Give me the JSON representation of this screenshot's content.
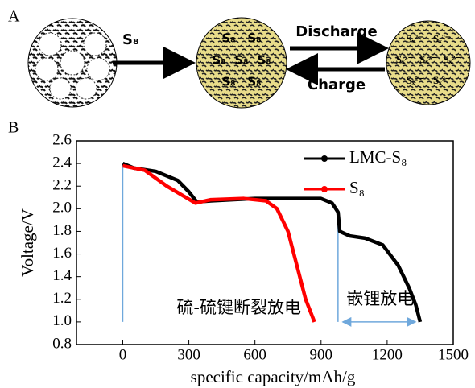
{
  "panel_a": {
    "label": "A",
    "arrow_label": "S₈",
    "loaded_labels": [
      "S₈",
      "S₈",
      "S₈",
      "S₈",
      "S₈",
      "S₈",
      "S₈"
    ],
    "discharge": "Discharge",
    "charge": "Charge",
    "polysulfide_labels": [
      "Sₓ²⁻",
      "Sₓ²⁻",
      "Sₓ²⁻",
      "Sₓ²⁻",
      "Sₓ²⁻",
      "Sₓ²⁻",
      "Sₓ²⁻"
    ]
  },
  "panel_b_label": "B",
  "chart_data": {
    "type": "line",
    "xlabel": "specific capacity/mAh/g",
    "ylabel": "Voltage/V",
    "xlim": [
      -210,
      1500
    ],
    "xticks": [
      0,
      300,
      600,
      900,
      1200,
      1500
    ],
    "ylim": [
      0.8,
      2.6
    ],
    "yticks": [
      {
        "value": 0.8,
        "label": "0.8"
      },
      {
        "value": 1.0,
        "label": "1.0"
      },
      {
        "value": 1.2,
        "label": "1.2"
      },
      {
        "value": 1.4,
        "label": "1.4"
      },
      {
        "value": 1.6,
        "label": "1.6"
      },
      {
        "value": 1.8,
        "label": "1.8"
      },
      {
        "value": 2.0,
        "label": "2.0"
      },
      {
        "value": 2.2,
        "label": "2.2"
      },
      {
        "value": 2.4,
        "label": "2.4"
      },
      {
        "value": 2.6,
        "label": "2.6"
      }
    ],
    "grid": false,
    "legend": "top-right",
    "series": [
      {
        "name": "LMC-S₈",
        "color": "#000000",
        "x": [
          0,
          50,
          150,
          250,
          300,
          336,
          400,
          600,
          900,
          950,
          977,
          985,
          1030,
          1100,
          1180,
          1250,
          1300,
          1330,
          1350
        ],
        "values": [
          2.4,
          2.36,
          2.33,
          2.25,
          2.15,
          2.06,
          2.07,
          2.09,
          2.09,
          2.05,
          1.97,
          1.8,
          1.76,
          1.74,
          1.68,
          1.5,
          1.3,
          1.15,
          1.0
        ]
      },
      {
        "name": "S₈",
        "color": "#ff0000",
        "x": [
          0,
          100,
          200,
          330,
          400,
          550,
          650,
          700,
          750,
          790,
          830,
          860,
          870
        ],
        "values": [
          2.38,
          2.34,
          2.2,
          2.05,
          2.08,
          2.09,
          2.07,
          2.0,
          1.8,
          1.5,
          1.2,
          1.05,
          1.0
        ]
      }
    ],
    "annotations": [
      "硫-硫键断裂放电",
      "嵌锂放电"
    ]
  }
}
